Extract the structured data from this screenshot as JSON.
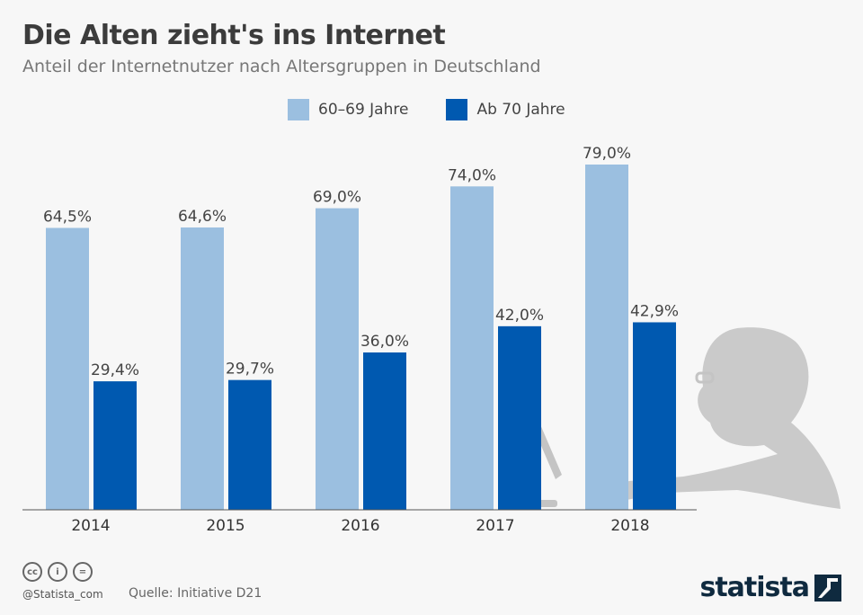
{
  "header": {
    "title": "Die Alten zieht's ins Internet",
    "subtitle": "Anteil der Internetnutzer nach Altersgruppen in Deutschland"
  },
  "chart_data": {
    "type": "bar",
    "categories": [
      "2014",
      "2015",
      "2016",
      "2017",
      "2018"
    ],
    "series": [
      {
        "name": "60–69 Jahre",
        "color": "#9bbfe0",
        "values": [
          64.5,
          64.6,
          69.0,
          74.0,
          79.0
        ],
        "labels": [
          "64,5%",
          "64,6%",
          "69,0%",
          "74,0%",
          "79,0%"
        ]
      },
      {
        "name": "Ab 70 Jahre",
        "color": "#0059b0",
        "values": [
          29.4,
          29.7,
          36.0,
          42.0,
          42.9
        ],
        "labels": [
          "29,4%",
          "29,7%",
          "36,0%",
          "42,0%",
          "42,9%"
        ]
      }
    ],
    "ylim": [
      0,
      80
    ],
    "grid": false,
    "legend": "top-center"
  },
  "footer": {
    "handle": "@Statista_com",
    "source": "Quelle: Initiative D21",
    "logo": "statista",
    "cc_icons": [
      "cc",
      "by",
      "="
    ]
  }
}
